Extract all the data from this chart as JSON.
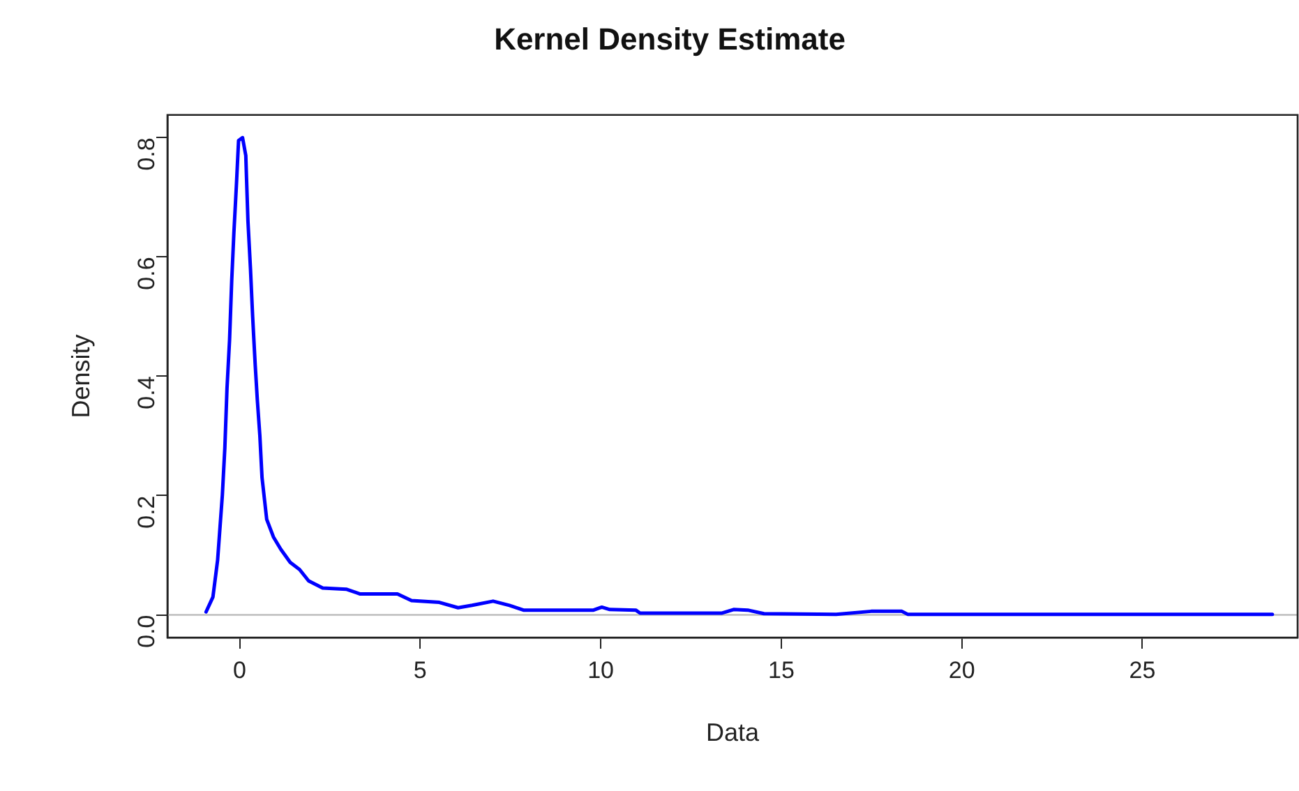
{
  "chart_data": {
    "type": "line",
    "title": "Kernel Density Estimate",
    "xlabel": "Data",
    "ylabel": "Density",
    "x": [
      -0.93,
      -0.74,
      -0.61,
      -0.48,
      -0.41,
      -0.35,
      -0.28,
      -0.22,
      -0.16,
      -0.09,
      -0.03,
      0.08,
      0.17,
      0.23,
      0.3,
      0.36,
      0.43,
      0.49,
      0.56,
      0.62,
      0.75,
      0.94,
      1.14,
      1.4,
      1.66,
      1.91,
      2.3,
      2.95,
      3.34,
      4.37,
      4.76,
      5.53,
      6.05,
      6.44,
      7.02,
      7.47,
      7.86,
      9.8,
      10.03,
      10.25,
      10.97,
      11.09,
      13.36,
      13.68,
      14.07,
      14.52,
      16.52,
      17.49,
      18.34,
      18.5,
      28.6
    ],
    "series": [
      {
        "color": "#0000ff",
        "values": [
          0.005,
          0.03,
          0.092,
          0.2,
          0.28,
          0.38,
          0.46,
          0.56,
          0.64,
          0.72,
          0.795,
          0.8,
          0.77,
          0.66,
          0.58,
          0.5,
          0.42,
          0.36,
          0.3,
          0.23,
          0.16,
          0.13,
          0.11,
          0.088,
          0.076,
          0.057,
          0.045,
          0.043,
          0.035,
          0.035,
          0.024,
          0.021,
          0.012,
          0.016,
          0.023,
          0.016,
          0.008,
          0.008,
          0.013,
          0.009,
          0.008,
          0.003,
          0.003,
          0.009,
          0.008,
          0.002,
          0.001,
          0.006,
          0.006,
          0.001,
          0.001
        ]
      }
    ],
    "xlim": [
      -2,
      29.3
    ],
    "xticks": [
      0,
      5,
      10,
      15,
      20,
      25
    ],
    "ylim": [
      -0.038,
      0.838
    ],
    "yticks": [
      {
        "value": 0,
        "label": "0.0"
      },
      {
        "value": 0.2,
        "label": "0.2"
      },
      {
        "value": 0.4,
        "label": "0.4"
      },
      {
        "value": 0.6,
        "label": "0.6"
      },
      {
        "value": 0.8,
        "label": "0.8"
      }
    ],
    "ref_lines": [
      {
        "axis": "y",
        "value": 0,
        "color": "#bebebe"
      }
    ],
    "grid": false,
    "legend": false,
    "marker": "none",
    "line_style": "solid"
  }
}
